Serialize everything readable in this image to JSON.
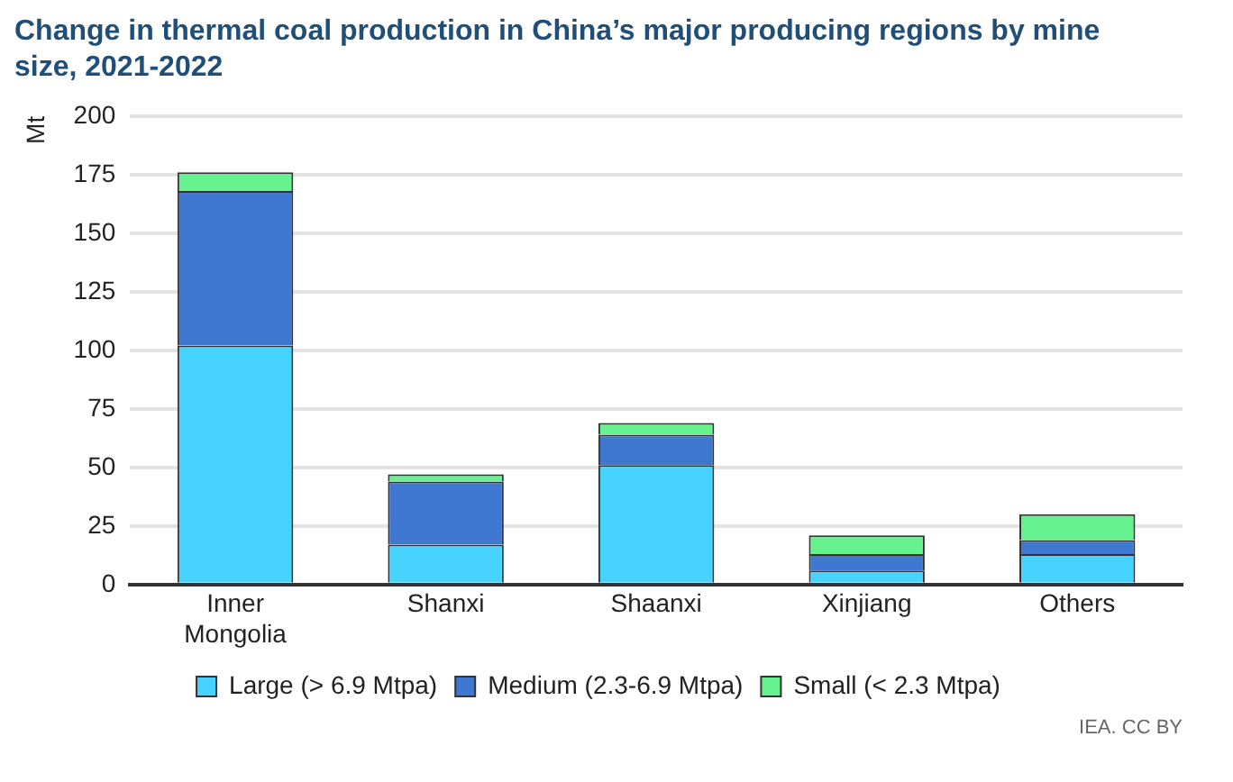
{
  "chart_data": {
    "type": "bar",
    "title": "Change in thermal coal production in China’s major producing regions by mine size, 2021-2022",
    "ylabel": "Mt",
    "categories": [
      "Inner Mongolia",
      "Shanxi",
      "Shaanxi",
      "Xinjiang",
      "Others"
    ],
    "stacked": true,
    "series": [
      {
        "name": "Large (> 6.9 Mtpa)",
        "color": "#47d3ff",
        "values": [
          102,
          17,
          51,
          6,
          13
        ]
      },
      {
        "name": "Medium (2.3-6.9 Mtpa)",
        "color": "#3f78d1",
        "values": [
          66,
          27,
          13,
          7,
          6
        ]
      },
      {
        "name": "Small (< 2.3 Mtpa)",
        "color": "#66f28f",
        "values": [
          8,
          3,
          5,
          8,
          11
        ]
      }
    ],
    "ylim": [
      0,
      200
    ],
    "yticks": [
      0,
      25,
      50,
      75,
      100,
      125,
      150,
      175,
      200
    ],
    "grid": "y",
    "legend": "bottom",
    "annotations": [
      "IEA. CC BY"
    ]
  }
}
